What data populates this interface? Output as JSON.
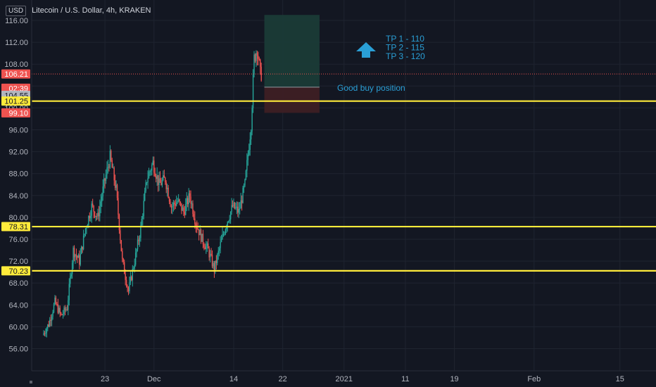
{
  "header": {
    "currency": "USD",
    "symbol_title": "Litecoin / U.S. Dollar, 4h, KRAKEN"
  },
  "colors": {
    "background": "#131722",
    "grid": "#1f2430",
    "candle_up": "#26a69a",
    "candle_down": "#ef5350",
    "support_line": "#ffeb3b",
    "annotation": "#2a9fd6",
    "profit_zone": "#1a3b37",
    "loss_zone": "#3d1f24"
  },
  "chart_data": {
    "type": "candlestick",
    "ylim": [
      52,
      117
    ],
    "yticks": [
      56,
      60,
      64,
      68,
      72,
      76,
      80,
      84,
      88,
      92,
      96,
      100,
      104,
      108,
      112,
      116
    ],
    "ytick_labels": [
      "56.00",
      "60.00",
      "64.00",
      "68.00",
      "72.00",
      "76.00",
      "80.00",
      "84.00",
      "88.00",
      "92.00",
      "96.00",
      "100.00",
      "104.00",
      "108.00",
      "112.00",
      "116.00"
    ],
    "x_range": [
      "2020-11-13",
      "2021-02-16"
    ],
    "xticks": [
      {
        "date": "2020-11-23",
        "label": "23"
      },
      {
        "date": "2020-12-01",
        "label": "Dec"
      },
      {
        "date": "2020-12-14",
        "label": "14"
      },
      {
        "date": "2020-12-22",
        "label": "22"
      },
      {
        "date": "2021-01-01",
        "label": "2021"
      },
      {
        "date": "2021-01-11",
        "label": "11"
      },
      {
        "date": "2021-01-19",
        "label": "19"
      },
      {
        "date": "2021-02-01",
        "label": "Feb"
      },
      {
        "date": "2021-02-15",
        "label": "15"
      }
    ],
    "price_path": [
      [
        "2020-11-13",
        58.5
      ],
      [
        "2020-11-14",
        60.5
      ],
      [
        "2020-11-15",
        64.5
      ],
      [
        "2020-11-16",
        62.0
      ],
      [
        "2020-11-17",
        63.5
      ],
      [
        "2020-11-18",
        74.0
      ],
      [
        "2020-11-19",
        72.0
      ],
      [
        "2020-11-20",
        78.0
      ],
      [
        "2020-11-21",
        82.0
      ],
      [
        "2020-11-22",
        80.0
      ],
      [
        "2020-11-23",
        86.0
      ],
      [
        "2020-11-24",
        91.0
      ],
      [
        "2020-11-25",
        85.0
      ],
      [
        "2020-11-26",
        72.0
      ],
      [
        "2020-11-27",
        66.5
      ],
      [
        "2020-11-28",
        72.0
      ],
      [
        "2020-11-29",
        78.0
      ],
      [
        "2020-11-30",
        87.0
      ],
      [
        "2020-12-01",
        90.0
      ],
      [
        "2020-12-02",
        86.0
      ],
      [
        "2020-12-03",
        87.0
      ],
      [
        "2020-12-04",
        82.0
      ],
      [
        "2020-12-05",
        83.0
      ],
      [
        "2020-12-06",
        81.0
      ],
      [
        "2020-12-07",
        84.0
      ],
      [
        "2020-12-08",
        79.0
      ],
      [
        "2020-12-09",
        76.0
      ],
      [
        "2020-12-10",
        74.0
      ],
      [
        "2020-12-11",
        70.5
      ],
      [
        "2020-12-12",
        75.0
      ],
      [
        "2020-12-13",
        79.0
      ],
      [
        "2020-12-14",
        82.0
      ],
      [
        "2020-12-15",
        81.0
      ],
      [
        "2020-12-16",
        86.0
      ],
      [
        "2020-12-17",
        97.0
      ],
      [
        "2020-12-17T12:00",
        109.0
      ],
      [
        "2020-12-18",
        111.0
      ],
      [
        "2020-12-18T12:00",
        106.21
      ]
    ],
    "horizontal_levels": [
      {
        "price": 101.25,
        "label": "101.25"
      },
      {
        "price": 78.31,
        "label": "78.31"
      },
      {
        "price": 70.23,
        "label": "70.23"
      }
    ],
    "axis_badges": [
      {
        "price": 106.21,
        "label": "106.21",
        "color": "#ef5350",
        "text_color": "#ffffff"
      },
      {
        "price": 103.6,
        "label": "02:39",
        "color": "#ef5350",
        "text_color": "#ffffff"
      },
      {
        "price": 102.3,
        "label": "104.55",
        "color": "#b2b5be",
        "text_color": "#131722"
      },
      {
        "price": 101.25,
        "label": "101.25",
        "color": "#ffeb3b",
        "text_color": "#131722"
      },
      {
        "price": 99.1,
        "label": "99.10",
        "color": "#ef5350",
        "text_color": "#ffffff"
      },
      {
        "price": 78.31,
        "label": "78.31",
        "color": "#ffeb3b",
        "text_color": "#131722"
      },
      {
        "price": 70.23,
        "label": "70.23",
        "color": "#ffeb3b",
        "text_color": "#131722"
      }
    ],
    "current_price": 106.21,
    "position": {
      "start": "2020-12-19",
      "end": "2020-12-28",
      "entry": 103.8,
      "target": 117,
      "stop": 99.1
    },
    "annotations": {
      "targets": [
        "TP 1 - 110",
        "TP 2 - 115",
        "TP 3 - 120"
      ],
      "note": "Good buy position"
    }
  }
}
